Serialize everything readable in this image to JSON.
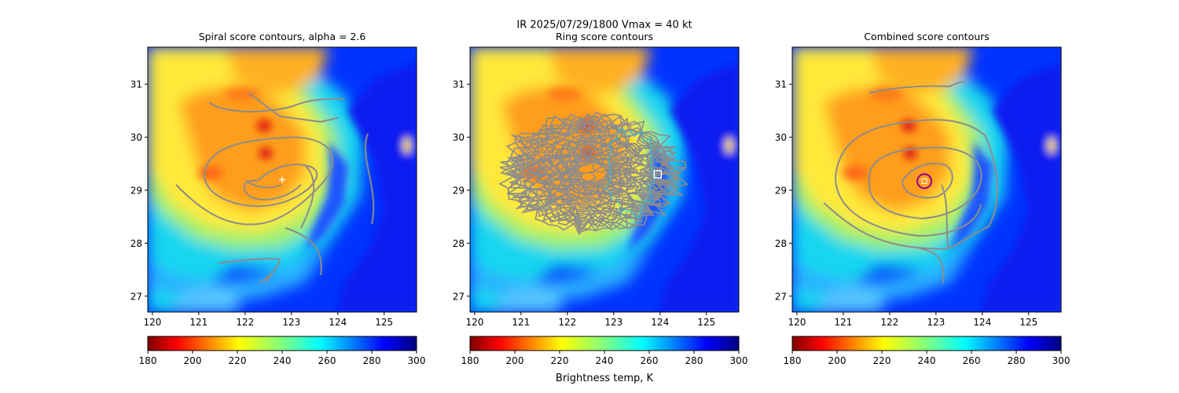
{
  "figure": {
    "suptitle_line1": "IR  2025/07/29/1800    Vmax = 40 kt",
    "colorbar_label": "Brightness temp, K"
  },
  "colors": {
    "contour": "#8c8c8c",
    "center_marker": "#ffffff",
    "best_circle": "#9b0a87",
    "cyan_contour": "#1fc6e6"
  },
  "chart_data": [
    {
      "type": "heatmap",
      "panel": "spiral",
      "title": "Spiral score contours, alpha =  2.6",
      "xlim": [
        119.9,
        125.7
      ],
      "ylim": [
        26.7,
        31.7
      ],
      "x_ticks": [
        120,
        121,
        122,
        123,
        124,
        125
      ],
      "y_ticks": [
        27,
        28,
        29,
        30,
        31
      ],
      "colorbar": {
        "min": 180,
        "max": 300,
        "ticks": [
          180,
          200,
          220,
          240,
          260,
          280,
          300
        ],
        "cmap": "jet_r"
      },
      "marker": {
        "kind": "plus",
        "lon": 122.8,
        "lat": 29.2
      }
    },
    {
      "type": "heatmap",
      "panel": "ring",
      "title": "Ring score contours",
      "xlim": [
        119.9,
        125.7
      ],
      "ylim": [
        26.7,
        31.7
      ],
      "x_ticks": [
        120,
        121,
        122,
        123,
        124,
        125
      ],
      "y_ticks": [
        27,
        28,
        29,
        30,
        31
      ],
      "colorbar": {
        "min": 180,
        "max": 300,
        "ticks": [
          180,
          200,
          220,
          240,
          260,
          280,
          300
        ],
        "cmap": "jet_r"
      },
      "marker": {
        "kind": "square",
        "lon": 123.95,
        "lat": 29.3
      }
    },
    {
      "type": "heatmap",
      "panel": "combined",
      "title": "Combined score contours",
      "xlim": [
        119.9,
        125.7
      ],
      "ylim": [
        26.7,
        31.7
      ],
      "x_ticks": [
        120,
        121,
        122,
        123,
        124,
        125
      ],
      "y_ticks": [
        27,
        28,
        29,
        30,
        31
      ],
      "colorbar": {
        "min": 180,
        "max": 300,
        "ticks": [
          180,
          200,
          220,
          240,
          260,
          280,
          300
        ],
        "cmap": "jet_r"
      },
      "marker": {
        "kind": "circle",
        "lon": 122.75,
        "lat": 29.17
      }
    }
  ]
}
